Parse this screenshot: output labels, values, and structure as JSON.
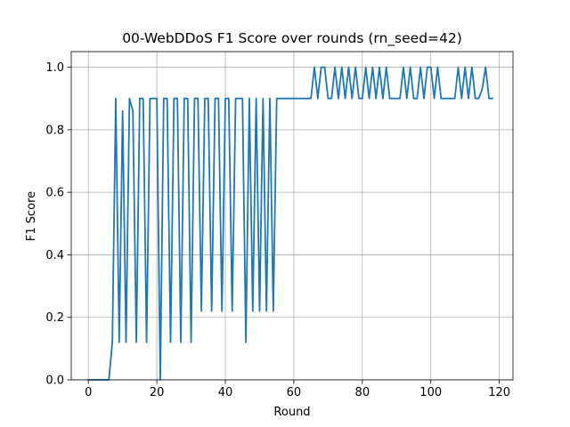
{
  "chart_data": {
    "type": "line",
    "title": "00-WebDDoS F1 Score over rounds (rn_seed=42)",
    "xlabel": "Round",
    "ylabel": "F1 Score",
    "xlim": [
      -5,
      124
    ],
    "ylim": [
      0.0,
      1.05
    ],
    "xticks": [
      0,
      20,
      40,
      60,
      80,
      100,
      120
    ],
    "yticks": [
      0.0,
      0.2,
      0.4,
      0.6,
      0.8,
      1.0
    ],
    "xtick_labels": [
      "0",
      "20",
      "40",
      "60",
      "80",
      "100",
      "120"
    ],
    "ytick_labels": [
      "0.0",
      "0.2",
      "0.4",
      "0.6",
      "0.8",
      "1.0"
    ],
    "grid": true,
    "color": "#1f77b4",
    "series": [
      {
        "x": [
          0,
          1,
          2,
          3,
          4,
          5,
          6,
          7,
          8,
          9,
          10,
          11,
          12,
          13,
          14,
          15,
          16,
          17,
          18,
          19,
          20,
          21,
          22,
          23,
          24,
          25,
          26,
          27,
          28,
          29,
          30,
          31,
          32,
          33,
          34,
          35,
          36,
          37,
          38,
          39,
          40,
          41,
          42,
          43,
          44,
          45,
          46,
          47,
          48,
          49,
          50,
          51,
          52,
          53,
          54,
          55,
          56,
          57,
          58,
          59,
          60,
          61,
          62,
          63,
          64,
          65,
          66,
          67,
          68,
          69,
          70,
          71,
          72,
          73,
          74,
          75,
          76,
          77,
          78,
          79,
          80,
          81,
          82,
          83,
          84,
          85,
          86,
          87,
          88,
          89,
          90,
          91,
          92,
          93,
          94,
          95,
          96,
          97,
          98,
          99,
          100,
          101,
          102,
          103,
          104,
          105,
          106,
          107,
          108,
          109,
          110,
          111,
          112,
          113,
          114,
          115,
          116,
          117,
          118
        ],
        "y": [
          0,
          0,
          0,
          0,
          0,
          0,
          0,
          0.12,
          0.9,
          0.12,
          0.86,
          0.12,
          0.9,
          0.86,
          0.12,
          0.9,
          0.9,
          0.12,
          0.9,
          0.9,
          0.9,
          0,
          0.9,
          0.9,
          0.12,
          0.9,
          0.9,
          0.12,
          0.9,
          0.9,
          0.12,
          0.9,
          0.9,
          0.22,
          0.9,
          0.9,
          0.22,
          0.9,
          0.9,
          0.22,
          0.9,
          0.9,
          0.22,
          0.9,
          0.9,
          0.9,
          0.12,
          0.9,
          0.22,
          0.9,
          0.22,
          0.9,
          0.22,
          0.9,
          0.22,
          0.9,
          0.9,
          0.9,
          0.9,
          0.9,
          0.9,
          0.9,
          0.9,
          0.9,
          0.9,
          0.9,
          1.0,
          0.9,
          1.0,
          1.0,
          0.9,
          0.9,
          1.0,
          0.9,
          1.0,
          0.9,
          1.0,
          0.9,
          1.0,
          0.9,
          0.9,
          1.0,
          0.9,
          1.0,
          0.9,
          1.0,
          0.9,
          1.0,
          0.9,
          0.9,
          0.9,
          0.9,
          1.0,
          0.9,
          1.0,
          0.9,
          0.9,
          1.0,
          0.9,
          1.0,
          1.0,
          0.9,
          1.0,
          0.9,
          0.9,
          0.9,
          0.9,
          0.9,
          1.0,
          0.9,
          1.0,
          0.9,
          1.0,
          0.9,
          0.9,
          0.93,
          1.0,
          0.9,
          0.9
        ]
      }
    ]
  }
}
